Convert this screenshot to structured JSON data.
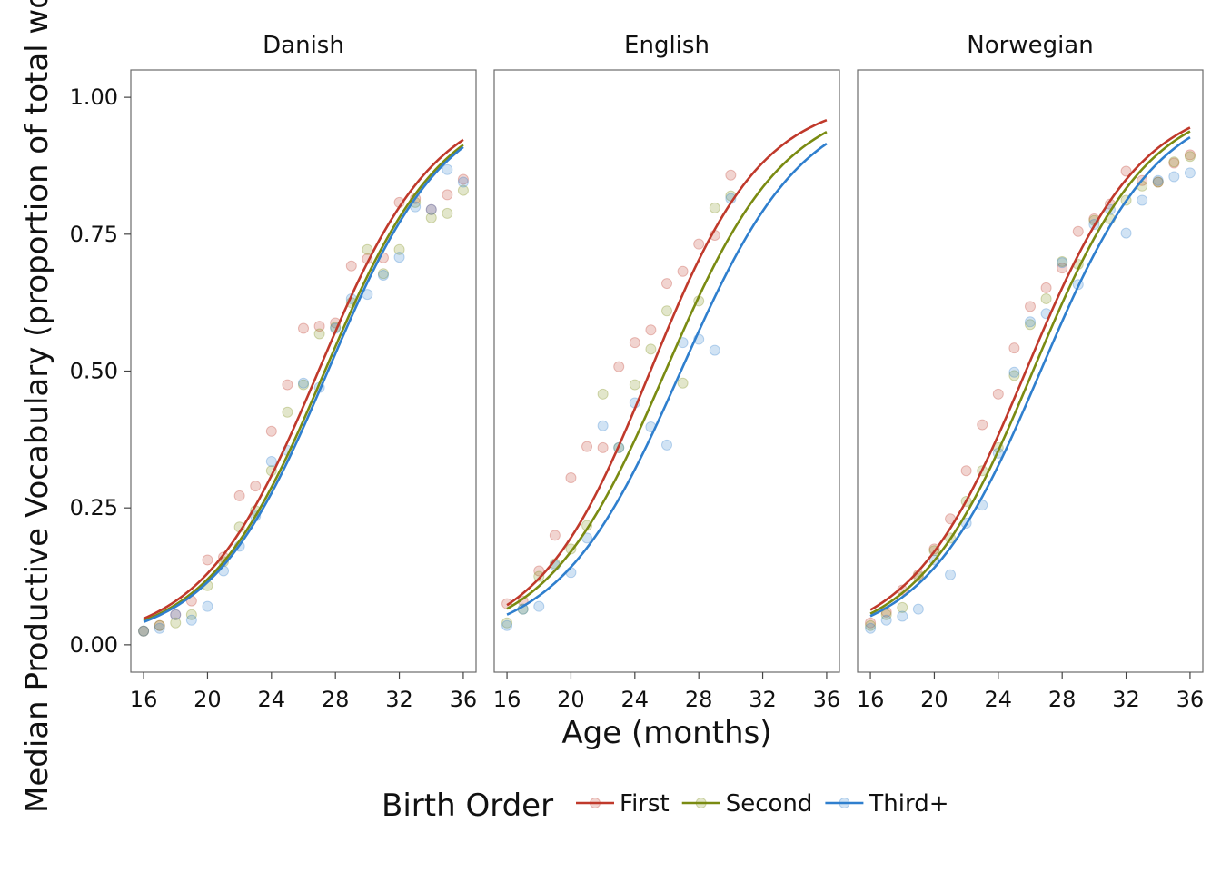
{
  "chart_data": {
    "type": "scatter",
    "xlabel": "Age (months)",
    "ylabel": "Median Productive Vocabulary (proportion of total words)",
    "xlim": [
      15.2,
      36.8
    ],
    "ylim": [
      -0.05,
      1.05
    ],
    "x_ticks": [
      "16",
      "20",
      "24",
      "28",
      "32",
      "36"
    ],
    "y_ticks": [
      "0.00",
      "0.25",
      "0.50",
      "0.75",
      "1.00"
    ],
    "grid": false,
    "legend": {
      "title": "Birth Order",
      "position": "bottom",
      "entries": [
        "First",
        "Second",
        "Third+"
      ]
    },
    "colors": {
      "First": "#c0392b",
      "Second": "#7a8b12",
      "Third+": "#2f7fce"
    },
    "panels": [
      {
        "name": "Danish",
        "fits": {
          "First": {
            "k": 0.2735,
            "mid": 26.94
          },
          "Second": {
            "k": 0.2719,
            "mid": 27.34
          },
          "Third+": {
            "k": 0.2719,
            "mid": 27.53
          }
        },
        "series": [
          {
            "name": "First",
            "points": [
              [
                16,
                0.025
              ],
              [
                17,
                0.035
              ],
              [
                18,
                0.055
              ],
              [
                19,
                0.08
              ],
              [
                20,
                0.155
              ],
              [
                21,
                0.16
              ],
              [
                22,
                0.272
              ],
              [
                23,
                0.29
              ],
              [
                24,
                0.39
              ],
              [
                25,
                0.475
              ],
              [
                26,
                0.578
              ],
              [
                27,
                0.582
              ],
              [
                28,
                0.588
              ],
              [
                29,
                0.692
              ],
              [
                30,
                0.705
              ],
              [
                31,
                0.707
              ],
              [
                32,
                0.808
              ],
              [
                33,
                0.815
              ],
              [
                34,
                0.795
              ],
              [
                35,
                0.822
              ],
              [
                36,
                0.85
              ]
            ]
          },
          {
            "name": "Second",
            "points": [
              [
                16,
                0.025
              ],
              [
                17,
                0.035
              ],
              [
                18,
                0.04
              ],
              [
                19,
                0.055
              ],
              [
                20,
                0.108
              ],
              [
                21,
                0.152
              ],
              [
                22,
                0.215
              ],
              [
                23,
                0.245
              ],
              [
                24,
                0.318
              ],
              [
                25,
                0.425
              ],
              [
                26,
                0.475
              ],
              [
                27,
                0.568
              ],
              [
                28,
                0.58
              ],
              [
                29,
                0.625
              ],
              [
                30,
                0.722
              ],
              [
                31,
                0.678
              ],
              [
                32,
                0.722
              ],
              [
                33,
                0.808
              ],
              [
                34,
                0.78
              ],
              [
                35,
                0.788
              ],
              [
                36,
                0.83
              ]
            ]
          },
          {
            "name": "Third+",
            "points": [
              [
                16,
                0.025
              ],
              [
                17,
                0.03
              ],
              [
                18,
                0.055
              ],
              [
                19,
                0.045
              ],
              [
                20,
                0.07
              ],
              [
                21,
                0.135
              ],
              [
                22,
                0.18
              ],
              [
                23,
                0.235
              ],
              [
                24,
                0.335
              ],
              [
                25,
                0.355
              ],
              [
                26,
                0.478
              ],
              [
                27,
                0.47
              ],
              [
                28,
                0.578
              ],
              [
                29,
                0.632
              ],
              [
                30,
                0.64
              ],
              [
                31,
                0.675
              ],
              [
                32,
                0.708
              ],
              [
                33,
                0.8
              ],
              [
                34,
                0.795
              ],
              [
                35,
                0.868
              ],
              [
                36,
                0.845
              ]
            ]
          }
        ]
      },
      {
        "name": "English",
        "fits": {
          "First": {
            "k": 0.2844,
            "mid": 24.97
          },
          "Second": {
            "k": 0.2676,
            "mid": 25.92
          },
          "Third+": {
            "k": 0.2614,
            "mid": 26.88
          }
        },
        "series": [
          {
            "name": "First",
            "points": [
              [
                16,
                0.075
              ],
              [
                17,
                0.08
              ],
              [
                18,
                0.135
              ],
              [
                19,
                0.2
              ],
              [
                20,
                0.305
              ],
              [
                21,
                0.362
              ],
              [
                22,
                0.36
              ],
              [
                23,
                0.508
              ],
              [
                24,
                0.552
              ],
              [
                25,
                0.575
              ],
              [
                26,
                0.66
              ],
              [
                27,
                0.682
              ],
              [
                28,
                0.732
              ],
              [
                29,
                0.748
              ],
              [
                30,
                0.858
              ]
            ]
          },
          {
            "name": "Second",
            "points": [
              [
                16,
                0.04
              ],
              [
                17,
                0.065
              ],
              [
                18,
                0.125
              ],
              [
                19,
                0.148
              ],
              [
                20,
                0.175
              ],
              [
                21,
                0.218
              ],
              [
                22,
                0.458
              ],
              [
                23,
                0.36
              ],
              [
                24,
                0.475
              ],
              [
                25,
                0.54
              ],
              [
                26,
                0.61
              ],
              [
                27,
                0.478
              ],
              [
                28,
                0.628
              ],
              [
                29,
                0.798
              ],
              [
                30,
                0.82
              ]
            ]
          },
          {
            "name": "Third+",
            "points": [
              [
                16,
                0.035
              ],
              [
                17,
                0.065
              ],
              [
                18,
                0.07
              ],
              [
                19,
                0.145
              ],
              [
                20,
                0.132
              ],
              [
                21,
                0.195
              ],
              [
                22,
                0.4
              ],
              [
                23,
                0.36
              ],
              [
                24,
                0.442
              ],
              [
                25,
                0.398
              ],
              [
                26,
                0.365
              ],
              [
                27,
                0.552
              ],
              [
                28,
                0.558
              ],
              [
                29,
                0.538
              ],
              [
                30,
                0.815
              ]
            ]
          }
        ]
      },
      {
        "name": "Norwegian",
        "fits": {
          "First": {
            "k": 0.2764,
            "mid": 25.73
          },
          "Second": {
            "k": 0.2764,
            "mid": 26.17
          },
          "Third+": {
            "k": 0.2719,
            "mid": 26.65
          }
        },
        "series": [
          {
            "name": "First",
            "points": [
              [
                16,
                0.04
              ],
              [
                17,
                0.06
              ],
              [
                18,
                0.1
              ],
              [
                19,
                0.128
              ],
              [
                20,
                0.175
              ],
              [
                21,
                0.23
              ],
              [
                22,
                0.318
              ],
              [
                23,
                0.402
              ],
              [
                24,
                0.458
              ],
              [
                25,
                0.542
              ],
              [
                26,
                0.618
              ],
              [
                27,
                0.652
              ],
              [
                28,
                0.688
              ],
              [
                29,
                0.755
              ],
              [
                30,
                0.778
              ],
              [
                31,
                0.805
              ],
              [
                32,
                0.865
              ],
              [
                33,
                0.848
              ],
              [
                34,
                0.845
              ],
              [
                35,
                0.88
              ],
              [
                36,
                0.895
              ]
            ]
          },
          {
            "name": "Second",
            "points": [
              [
                16,
                0.035
              ],
              [
                17,
                0.055
              ],
              [
                18,
                0.068
              ],
              [
                19,
                0.125
              ],
              [
                20,
                0.172
              ],
              [
                21,
                0.195
              ],
              [
                22,
                0.262
              ],
              [
                23,
                0.318
              ],
              [
                24,
                0.36
              ],
              [
                25,
                0.492
              ],
              [
                26,
                0.585
              ],
              [
                27,
                0.632
              ],
              [
                28,
                0.7
              ],
              [
                29,
                0.695
              ],
              [
                30,
                0.775
              ],
              [
                31,
                0.778
              ],
              [
                32,
                0.812
              ],
              [
                33,
                0.838
              ],
              [
                34,
                0.845
              ],
              [
                35,
                0.882
              ],
              [
                36,
                0.892
              ]
            ]
          },
          {
            "name": "Third+",
            "points": [
              [
                16,
                0.03
              ],
              [
                17,
                0.045
              ],
              [
                18,
                0.052
              ],
              [
                19,
                0.065
              ],
              [
                20,
                0.155
              ],
              [
                21,
                0.128
              ],
              [
                22,
                0.222
              ],
              [
                23,
                0.255
              ],
              [
                24,
                0.35
              ],
              [
                25,
                0.498
              ],
              [
                26,
                0.59
              ],
              [
                27,
                0.605
              ],
              [
                28,
                0.698
              ],
              [
                29,
                0.658
              ],
              [
                30,
                0.768
              ],
              [
                31,
                0.795
              ],
              [
                32,
                0.752
              ],
              [
                33,
                0.812
              ],
              [
                34,
                0.848
              ],
              [
                35,
                0.855
              ],
              [
                36,
                0.862
              ]
            ]
          }
        ]
      }
    ]
  }
}
